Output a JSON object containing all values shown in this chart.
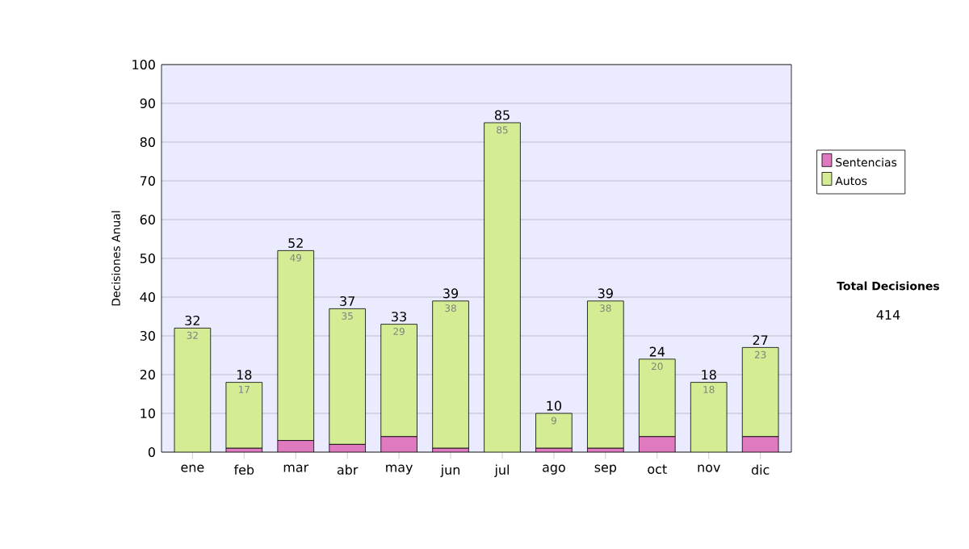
{
  "chart_data": {
    "type": "bar",
    "stacked": true,
    "ylabel": "Decisiones Anual",
    "categories": [
      "ene",
      "feb",
      "mar",
      "abr",
      "may",
      "jun",
      "jul",
      "ago",
      "sep",
      "oct",
      "nov",
      "dic"
    ],
    "series": [
      {
        "name": "Sentencias",
        "color": "#e07ac0",
        "values": [
          0,
          1,
          3,
          2,
          4,
          1,
          0,
          1,
          1,
          4,
          0,
          4
        ]
      },
      {
        "name": "Autos",
        "color": "#d4ec94",
        "values": [
          32,
          17,
          49,
          35,
          29,
          38,
          85,
          9,
          38,
          20,
          18,
          23
        ],
        "value_labels": [
          "32",
          "17",
          "49",
          "35",
          "29",
          "38",
          "85",
          "9",
          "38",
          "20",
          "18",
          "23"
        ]
      }
    ],
    "totals": [
      "32",
      "18",
      "52",
      "37",
      "33",
      "39",
      "85",
      "10",
      "39",
      "24",
      "18",
      "27"
    ],
    "ylim": [
      0,
      100
    ],
    "yticks": [
      0,
      10,
      20,
      30,
      40,
      50,
      60,
      70,
      80,
      90,
      100
    ],
    "grid": "y",
    "legend": "right",
    "annotations": [
      "Total Decisiones",
      "414"
    ]
  }
}
